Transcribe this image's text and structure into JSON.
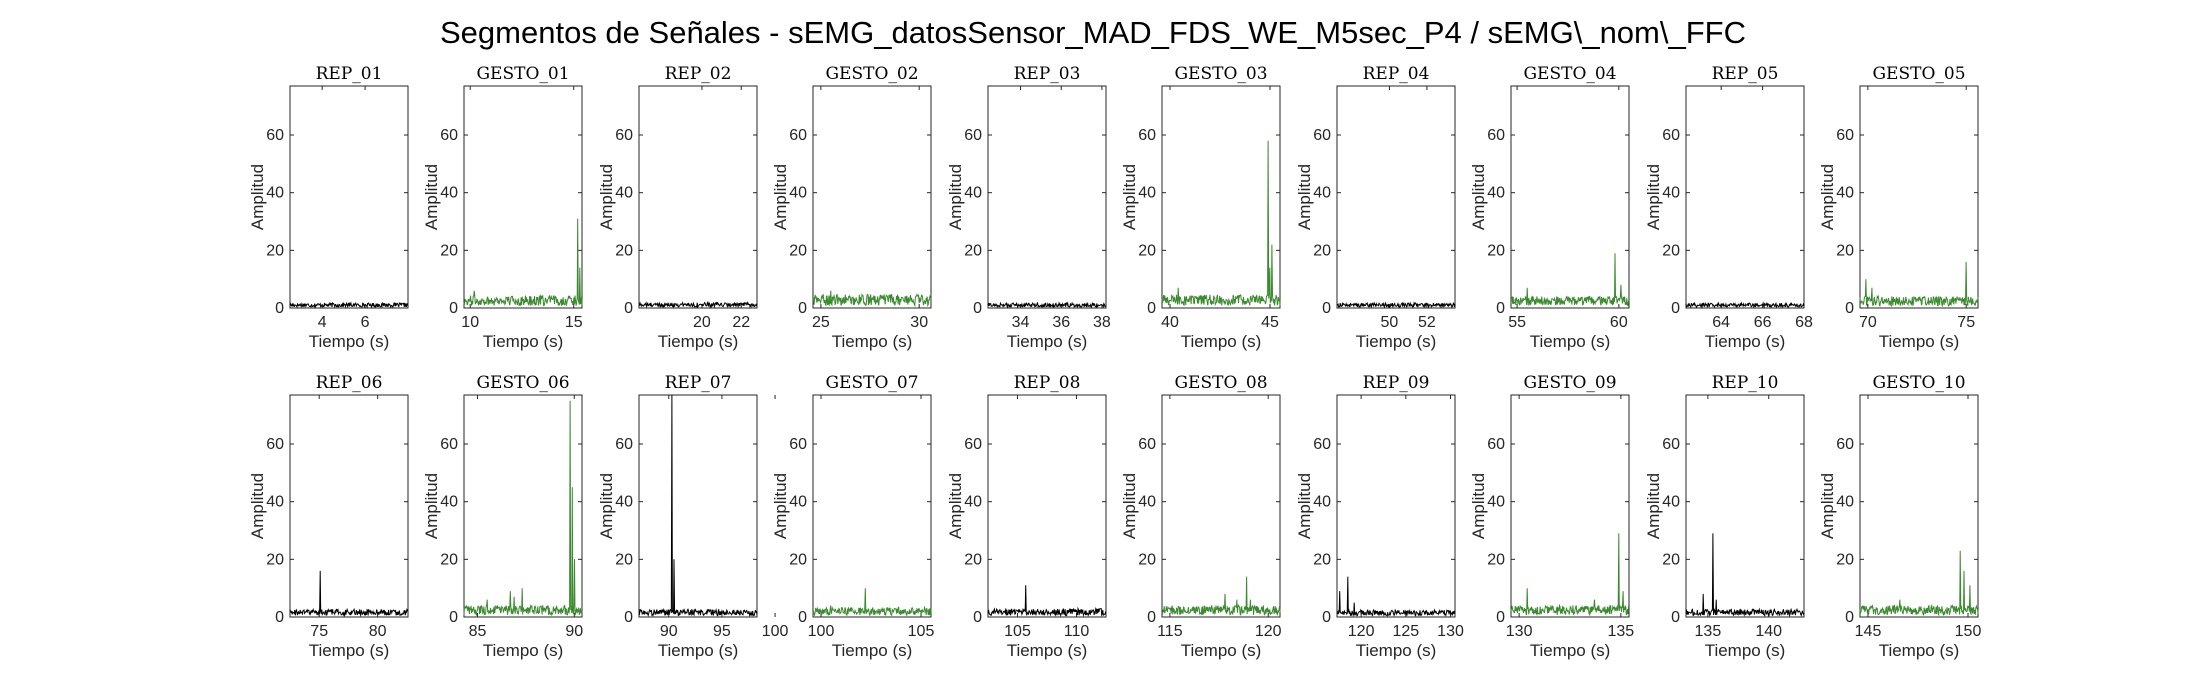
{
  "title": "Segmentos de Señales - sEMG_datosSensor_MAD_FDS_WE_M5sec_P4 / sEMG\\_nom\\_FFC",
  "chart_data": [
    {
      "type": "line",
      "title": "REP_01",
      "xlim": [
        2.5,
        8.0
      ],
      "xticks": [
        4,
        6
      ],
      "ylim": [
        0,
        77
      ],
      "yticks": [
        0,
        20,
        40,
        60
      ],
      "xlabel": "Tiempo (s)",
      "ylabel": "Amplitud",
      "color": "#000000",
      "baseline": 1.3,
      "spikes": []
    },
    {
      "type": "line",
      "title": "GESTO_01",
      "xlim": [
        9.7,
        15.4
      ],
      "xticks": [
        10,
        15
      ],
      "ylim": [
        0,
        77
      ],
      "yticks": [
        0,
        20,
        40,
        60
      ],
      "xlabel": "Tiempo (s)",
      "ylabel": "Amplitud",
      "color": "#3a8a2e",
      "baseline": 3.2,
      "spikes": [
        {
          "x": 10.2,
          "y": 6
        },
        {
          "x": 15.2,
          "y": 31
        },
        {
          "x": 15.3,
          "y": 14
        }
      ]
    },
    {
      "type": "line",
      "title": "REP_02",
      "xlim": [
        16.8,
        22.8
      ],
      "xticks": [
        20,
        22
      ],
      "ylim": [
        0,
        77
      ],
      "yticks": [
        0,
        20,
        40,
        60
      ],
      "xlabel": "Tiempo (s)",
      "ylabel": "Amplitud",
      "color": "#000000",
      "baseline": 1.4,
      "spikes": []
    },
    {
      "type": "line",
      "title": "GESTO_02",
      "xlim": [
        24.6,
        30.6
      ],
      "xticks": [
        25,
        30
      ],
      "ylim": [
        0,
        77
      ],
      "yticks": [
        0,
        20,
        40,
        60
      ],
      "xlabel": "Tiempo (s)",
      "ylabel": "Amplitud",
      "color": "#3a8a2e",
      "baseline": 3.5,
      "spikes": [
        {
          "x": 25.5,
          "y": 6
        }
      ]
    },
    {
      "type": "line",
      "title": "REP_03",
      "xlim": [
        32.4,
        38.2
      ],
      "xticks": [
        34,
        36,
        38
      ],
      "ylim": [
        0,
        77
      ],
      "yticks": [
        0,
        20,
        40,
        60
      ],
      "xlabel": "Tiempo (s)",
      "ylabel": "Amplitud",
      "color": "#000000",
      "baseline": 1.3,
      "spikes": []
    },
    {
      "type": "line",
      "title": "GESTO_03",
      "xlim": [
        39.6,
        45.5
      ],
      "xticks": [
        40,
        45
      ],
      "ylim": [
        0,
        77
      ],
      "yticks": [
        0,
        20,
        40,
        60
      ],
      "xlabel": "Tiempo (s)",
      "ylabel": "Amplitud",
      "color": "#3a8a2e",
      "baseline": 3.4,
      "spikes": [
        {
          "x": 40.4,
          "y": 7
        },
        {
          "x": 44.9,
          "y": 58
        },
        {
          "x": 45.0,
          "y": 14
        },
        {
          "x": 45.1,
          "y": 22
        }
      ]
    },
    {
      "type": "line",
      "title": "REP_04",
      "xlim": [
        47.2,
        53.5
      ],
      "xticks": [
        50,
        52
      ],
      "ylim": [
        0,
        77
      ],
      "yticks": [
        0,
        20,
        40,
        60
      ],
      "xlabel": "Tiempo (s)",
      "ylabel": "Amplitud",
      "color": "#000000",
      "baseline": 1.3,
      "spikes": []
    },
    {
      "type": "line",
      "title": "GESTO_04",
      "xlim": [
        54.7,
        60.5
      ],
      "xticks": [
        55,
        60
      ],
      "ylim": [
        0,
        77
      ],
      "yticks": [
        0,
        20,
        40,
        60
      ],
      "xlabel": "Tiempo (s)",
      "ylabel": "Amplitud",
      "color": "#3a8a2e",
      "baseline": 3.0,
      "spikes": [
        {
          "x": 55.5,
          "y": 7
        },
        {
          "x": 59.8,
          "y": 19
        },
        {
          "x": 60.1,
          "y": 8
        }
      ]
    },
    {
      "type": "line",
      "title": "REP_05",
      "xlim": [
        62.3,
        68.0
      ],
      "xticks": [
        64,
        66,
        68
      ],
      "ylim": [
        0,
        77
      ],
      "yticks": [
        0,
        20,
        40,
        60
      ],
      "xlabel": "Tiempo (s)",
      "ylabel": "Amplitud",
      "color": "#000000",
      "baseline": 1.3,
      "spikes": []
    },
    {
      "type": "line",
      "title": "GESTO_05",
      "xlim": [
        69.6,
        75.6
      ],
      "xticks": [
        70,
        75
      ],
      "ylim": [
        0,
        77
      ],
      "yticks": [
        0,
        20,
        40,
        60
      ],
      "xlabel": "Tiempo (s)",
      "ylabel": "Amplitud",
      "color": "#3a8a2e",
      "baseline": 3.0,
      "spikes": [
        {
          "x": 69.9,
          "y": 10
        },
        {
          "x": 70.2,
          "y": 7
        },
        {
          "x": 75.0,
          "y": 16
        }
      ]
    },
    {
      "type": "line",
      "title": "REP_06",
      "xlim": [
        72.5,
        82.6
      ],
      "xticks": [
        75,
        80
      ],
      "ylim": [
        0,
        77
      ],
      "yticks": [
        0,
        20,
        40,
        60
      ],
      "xlabel": "Tiempo (s)",
      "ylabel": "Amplitud",
      "color": "#000000",
      "baseline": 2.0,
      "spikes": [
        {
          "x": 75.1,
          "y": 16
        }
      ]
    },
    {
      "type": "line",
      "title": "GESTO_06",
      "xlim": [
        84.3,
        90.4
      ],
      "xticks": [
        85,
        90
      ],
      "ylim": [
        0,
        77
      ],
      "yticks": [
        0,
        20,
        40,
        60
      ],
      "xlabel": "Tiempo (s)",
      "ylabel": "Amplitud",
      "color": "#3a8a2e",
      "baseline": 3.0,
      "spikes": [
        {
          "x": 85.5,
          "y": 6
        },
        {
          "x": 86.7,
          "y": 9
        },
        {
          "x": 86.9,
          "y": 7
        },
        {
          "x": 87.3,
          "y": 10
        },
        {
          "x": 89.8,
          "y": 75
        },
        {
          "x": 89.9,
          "y": 45
        },
        {
          "x": 90.0,
          "y": 20
        }
      ]
    },
    {
      "type": "line",
      "title": "REP_07",
      "xlim": [
        87.2,
        98.3
      ],
      "xticks": [
        90,
        95,
        100
      ],
      "ylim": [
        0,
        77
      ],
      "yticks": [
        0,
        20,
        40,
        60
      ],
      "xlabel": "Tiempo (s)",
      "ylabel": "Amplitud",
      "color": "#000000",
      "baseline": 2.0,
      "spikes": [
        {
          "x": 90.3,
          "y": 77
        },
        {
          "x": 90.5,
          "y": 20
        }
      ]
    },
    {
      "type": "line",
      "title": "GESTO_07",
      "xlim": [
        99.6,
        105.5
      ],
      "xticks": [
        100,
        105
      ],
      "ylim": [
        0,
        77
      ],
      "yticks": [
        0,
        20,
        40,
        60
      ],
      "xlabel": "Tiempo (s)",
      "ylabel": "Amplitud",
      "color": "#3a8a2e",
      "baseline": 2.5,
      "spikes": [
        {
          "x": 100.5,
          "y": 4
        },
        {
          "x": 102.2,
          "y": 10
        }
      ]
    },
    {
      "type": "line",
      "title": "REP_08",
      "xlim": [
        102.5,
        112.5
      ],
      "xticks": [
        105,
        110
      ],
      "ylim": [
        0,
        77
      ],
      "yticks": [
        0,
        20,
        40,
        60
      ],
      "xlabel": "Tiempo (s)",
      "ylabel": "Amplitud",
      "color": "#000000",
      "baseline": 2.2,
      "spikes": [
        {
          "x": 105.7,
          "y": 11
        }
      ]
    },
    {
      "type": "line",
      "title": "GESTO_08",
      "xlim": [
        114.6,
        120.6
      ],
      "xticks": [
        115,
        120
      ],
      "ylim": [
        0,
        77
      ],
      "yticks": [
        0,
        20,
        40,
        60
      ],
      "xlabel": "Tiempo (s)",
      "ylabel": "Amplitud",
      "color": "#3a8a2e",
      "baseline": 3.0,
      "spikes": [
        {
          "x": 117.8,
          "y": 8
        },
        {
          "x": 118.4,
          "y": 6
        },
        {
          "x": 118.9,
          "y": 14
        },
        {
          "x": 119.1,
          "y": 6
        }
      ]
    },
    {
      "type": "line",
      "title": "REP_09",
      "xlim": [
        117.3,
        130.5
      ],
      "xticks": [
        120,
        125,
        130
      ],
      "ylim": [
        0,
        77
      ],
      "yticks": [
        0,
        20,
        40,
        60
      ],
      "xlabel": "Tiempo (s)",
      "ylabel": "Amplitud",
      "color": "#000000",
      "baseline": 1.8,
      "spikes": [
        {
          "x": 117.6,
          "y": 9
        },
        {
          "x": 118.5,
          "y": 14
        },
        {
          "x": 119.2,
          "y": 5
        }
      ]
    },
    {
      "type": "line",
      "title": "GESTO_09",
      "xlim": [
        129.6,
        135.4
      ],
      "xticks": [
        130,
        135
      ],
      "ylim": [
        0,
        77
      ],
      "yticks": [
        0,
        20,
        40,
        60
      ],
      "xlabel": "Tiempo (s)",
      "ylabel": "Amplitud",
      "color": "#3a8a2e",
      "baseline": 3.0,
      "spikes": [
        {
          "x": 130.4,
          "y": 10
        },
        {
          "x": 133.7,
          "y": 6
        },
        {
          "x": 134.9,
          "y": 29
        },
        {
          "x": 135.1,
          "y": 9
        }
      ]
    },
    {
      "type": "line",
      "title": "REP_10",
      "xlim": [
        133.2,
        142.9
      ],
      "xticks": [
        135,
        140
      ],
      "ylim": [
        0,
        77
      ],
      "yticks": [
        0,
        20,
        40,
        60
      ],
      "xlabel": "Tiempo (s)",
      "ylabel": "Amplitud",
      "color": "#000000",
      "baseline": 2.0,
      "spikes": [
        {
          "x": 134.6,
          "y": 8
        },
        {
          "x": 135.4,
          "y": 29
        },
        {
          "x": 135.7,
          "y": 6
        }
      ]
    },
    {
      "type": "line",
      "title": "GESTO_10",
      "xlim": [
        144.6,
        150.5
      ],
      "xticks": [
        145,
        150
      ],
      "ylim": [
        0,
        77
      ],
      "yticks": [
        0,
        20,
        40,
        60
      ],
      "xlabel": "Tiempo (s)",
      "ylabel": "Amplitud",
      "color": "#3a8a2e",
      "baseline": 3.0,
      "spikes": [
        {
          "x": 146.6,
          "y": 6
        },
        {
          "x": 149.6,
          "y": 23
        },
        {
          "x": 149.8,
          "y": 16
        },
        {
          "x": 150.1,
          "y": 11
        }
      ]
    }
  ]
}
